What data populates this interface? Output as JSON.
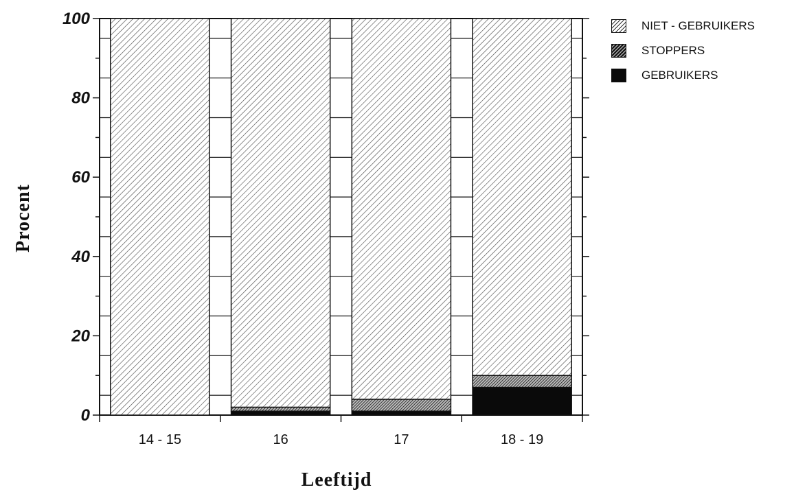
{
  "chart_data": {
    "type": "bar",
    "stacked": true,
    "categories": [
      "14 - 15",
      "16",
      "17",
      "18 - 19"
    ],
    "series": [
      {
        "name": "GEBRUIKERS",
        "values": [
          0,
          1,
          1,
          7
        ],
        "pattern": "solid-black"
      },
      {
        "name": "STOPPERS",
        "values": [
          0,
          1,
          3,
          3
        ],
        "pattern": "dense-hatch"
      },
      {
        "name": "NIET - GEBRUIKERS",
        "values": [
          100,
          98,
          96,
          90
        ],
        "pattern": "light-hatch"
      }
    ],
    "y_ticks": [
      "0",
      "20",
      "40",
      "60",
      "80",
      "100"
    ],
    "ylim": [
      0,
      100
    ],
    "xlabel": "Leeftijd",
    "ylabel": "Procent",
    "legend_position": "top-right",
    "grid": false
  },
  "legend": [
    {
      "label": "NIET - GEBRUIKERS",
      "pattern": "light-hatch"
    },
    {
      "label": "STOPPERS",
      "pattern": "dense-hatch"
    },
    {
      "label": "GEBRUIKERS",
      "pattern": "solid-black"
    }
  ]
}
